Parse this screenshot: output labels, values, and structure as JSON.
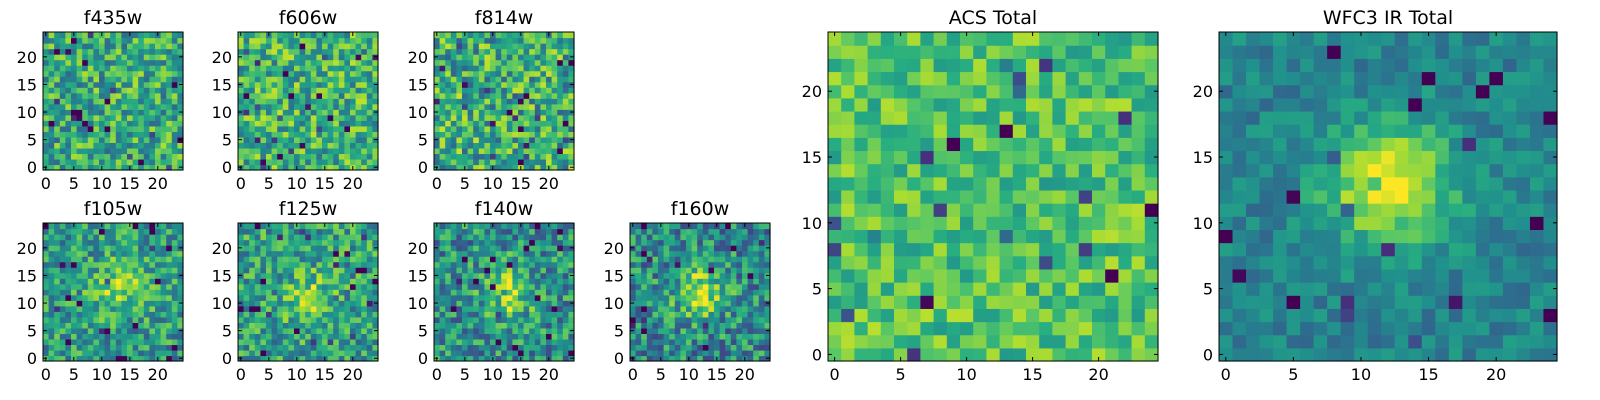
{
  "chart_data": [
    {
      "type": "heatmap",
      "id": "f435w",
      "title": "f435w",
      "grid_size": 25,
      "xlim": [
        0,
        24
      ],
      "ylim": [
        0,
        24
      ],
      "xticks": [
        0,
        5,
        10,
        15,
        20
      ],
      "yticks": [
        0,
        5,
        10,
        15,
        20
      ],
      "colormap": "viridis",
      "pattern": "uniform noise",
      "center": [
        12,
        12
      ],
      "peak_strength": 0.0,
      "noise_level": 0.45,
      "base_level": 0.62,
      "seed": 11
    },
    {
      "type": "heatmap",
      "id": "f606w",
      "title": "f606w",
      "grid_size": 25,
      "xlim": [
        0,
        24
      ],
      "ylim": [
        0,
        24
      ],
      "xticks": [
        0,
        5,
        10,
        15,
        20
      ],
      "yticks": [
        0,
        5,
        10,
        15,
        20
      ],
      "colormap": "viridis",
      "pattern": "uniform noise",
      "center": [
        12,
        12
      ],
      "peak_strength": 0.0,
      "noise_level": 0.45,
      "base_level": 0.65,
      "seed": 23
    },
    {
      "type": "heatmap",
      "id": "f814w",
      "title": "f814w",
      "grid_size": 25,
      "xlim": [
        0,
        24
      ],
      "ylim": [
        0,
        24
      ],
      "xticks": [
        0,
        5,
        10,
        15,
        20
      ],
      "yticks": [
        0,
        5,
        10,
        15,
        20
      ],
      "colormap": "viridis",
      "pattern": "uniform noise",
      "center": [
        12,
        12
      ],
      "peak_strength": 0.0,
      "noise_level": 0.5,
      "base_level": 0.63,
      "seed": 37
    },
    {
      "type": "heatmap",
      "id": "f105w",
      "title": "f105w",
      "grid_size": 25,
      "xlim": [
        0,
        24
      ],
      "ylim": [
        0,
        24
      ],
      "xticks": [
        0,
        5,
        10,
        15,
        20
      ],
      "yticks": [
        0,
        5,
        10,
        15,
        20
      ],
      "colormap": "viridis",
      "pattern": "central source",
      "center": [
        13,
        13
      ],
      "peak_strength": 0.3,
      "noise_level": 0.42,
      "base_level": 0.55,
      "seed": 41
    },
    {
      "type": "heatmap",
      "id": "f125w",
      "title": "f125w",
      "grid_size": 25,
      "xlim": [
        0,
        24
      ],
      "ylim": [
        0,
        24
      ],
      "xticks": [
        0,
        5,
        10,
        15,
        20
      ],
      "yticks": [
        0,
        5,
        10,
        15,
        20
      ],
      "colormap": "viridis",
      "pattern": "central source",
      "center": [
        12,
        11
      ],
      "peak_strength": 0.25,
      "noise_level": 0.42,
      "base_level": 0.57,
      "seed": 53
    },
    {
      "type": "heatmap",
      "id": "f140w",
      "title": "f140w",
      "grid_size": 25,
      "xlim": [
        0,
        24
      ],
      "ylim": [
        0,
        24
      ],
      "xticks": [
        0,
        5,
        10,
        15,
        20
      ],
      "yticks": [
        0,
        5,
        10,
        15,
        20
      ],
      "colormap": "viridis",
      "pattern": "central source",
      "center": [
        13,
        12
      ],
      "peak_strength": 0.35,
      "noise_level": 0.45,
      "base_level": 0.5,
      "seed": 67
    },
    {
      "type": "heatmap",
      "id": "f160w",
      "title": "f160w",
      "grid_size": 25,
      "xlim": [
        0,
        24
      ],
      "ylim": [
        0,
        24
      ],
      "xticks": [
        0,
        5,
        10,
        15,
        20
      ],
      "yticks": [
        0,
        5,
        10,
        15,
        20
      ],
      "colormap": "viridis",
      "pattern": "central source",
      "center": [
        12,
        12
      ],
      "peak_strength": 0.4,
      "noise_level": 0.45,
      "base_level": 0.48,
      "seed": 79
    },
    {
      "type": "heatmap",
      "id": "acs-total",
      "title": "ACS Total",
      "grid_size": 25,
      "xlim": [
        0,
        24
      ],
      "ylim": [
        0,
        24
      ],
      "xticks": [
        0,
        5,
        10,
        15,
        20
      ],
      "yticks": [
        0,
        5,
        10,
        15,
        20
      ],
      "colormap": "viridis",
      "pattern": "uniform noise",
      "center": [
        12,
        12
      ],
      "peak_strength": 0.0,
      "noise_level": 0.3,
      "base_level": 0.72,
      "seed": 97
    },
    {
      "type": "heatmap",
      "id": "wfc3-ir-total",
      "title": "WFC3 IR Total",
      "grid_size": 25,
      "xlim": [
        0,
        24
      ],
      "ylim": [
        0,
        24
      ],
      "xticks": [
        0,
        5,
        10,
        15,
        20
      ],
      "yticks": [
        0,
        5,
        10,
        15,
        20
      ],
      "colormap": "viridis",
      "pattern": "central source",
      "center": [
        12,
        13
      ],
      "peak_strength": 0.55,
      "noise_level": 0.2,
      "base_level": 0.45,
      "seed": 113
    }
  ]
}
